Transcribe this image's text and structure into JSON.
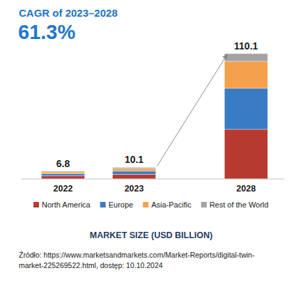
{
  "chart_data": {
    "type": "bar",
    "stacked": true,
    "annotations": [
      "CAGR of 2023–2028",
      "61.3%"
    ],
    "xlabel": "MARKET SIZE (USD BILLION)",
    "categories": [
      "2022",
      "2023",
      "2028"
    ],
    "series": [
      {
        "name": "North America",
        "color": "#b73a31",
        "values": [
          2.7,
          4.0,
          43.5
        ]
      },
      {
        "name": "Europe",
        "color": "#3a7cc3",
        "values": [
          1.9,
          2.8,
          36.1
        ]
      },
      {
        "name": "Asia-Pacific",
        "color": "#f5a04c",
        "values": [
          1.5,
          2.3,
          23.8
        ]
      },
      {
        "name": "Rest of the World",
        "color": "#a3a3a3",
        "values": [
          0.7,
          1.0,
          6.7
        ]
      }
    ],
    "totals": [
      6.8,
      10.1,
      110.1
    ],
    "ylim": [
      0,
      110.1
    ],
    "tick_labels": "x",
    "grid": false,
    "legend": "bottom",
    "source": [
      "Źródło: https://www.marketsandmarkets.com/Market-Reports/digital-twin-",
      "market-225269522.html, dostęp: 10.10.2024"
    ]
  }
}
